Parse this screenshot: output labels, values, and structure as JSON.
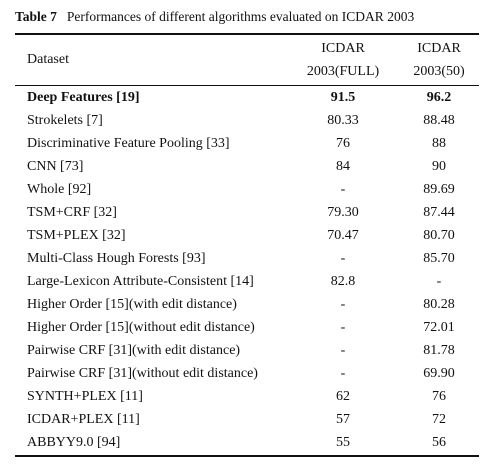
{
  "caption": {
    "label": "Table 7",
    "text": "Performances of different algorithms evaluated on ICDAR 2003"
  },
  "table": {
    "header": {
      "dataset": "Dataset",
      "col1_line1": "ICDAR",
      "col1_line2": "2003(FULL)",
      "col2_line1": "ICDAR",
      "col2_line2": "2003(50)"
    },
    "rows": [
      {
        "name": "Deep Features [19]",
        "full": "91.5",
        "fifty": "96.2",
        "bold": true
      },
      {
        "name": "Strokelets [7]",
        "full": "80.33",
        "fifty": "88.48"
      },
      {
        "name": "Discriminative Feature Pooling [33]",
        "full": "76",
        "fifty": "88"
      },
      {
        "name": "CNN [73]",
        "full": "84",
        "fifty": "90"
      },
      {
        "name": "Whole [92]",
        "full": "-",
        "fifty": "89.69"
      },
      {
        "name": "TSM+CRF [32]",
        "full": "79.30",
        "fifty": "87.44"
      },
      {
        "name": "TSM+PLEX [32]",
        "full": "70.47",
        "fifty": "80.70"
      },
      {
        "name": "Multi-Class Hough Forests [93]",
        "full": "-",
        "fifty": "85.70"
      },
      {
        "name": "Large-Lexicon Attribute-Consistent [14]",
        "full": "82.8",
        "fifty": "-"
      },
      {
        "name": "Higher Order [15](with edit distance)",
        "full": "-",
        "fifty": "80.28"
      },
      {
        "name": "Higher Order [15](without edit distance)",
        "full": "-",
        "fifty": "72.01"
      },
      {
        "name": "Pairwise CRF [31](with edit distance)",
        "full": "-",
        "fifty": "81.78"
      },
      {
        "name": "Pairwise CRF [31](without edit distance)",
        "full": "-",
        "fifty": "69.90"
      },
      {
        "name": "SYNTH+PLEX [11]",
        "full": "62",
        "fifty": "76"
      },
      {
        "name": "ICDAR+PLEX [11]",
        "full": "57",
        "fifty": "72"
      },
      {
        "name": "ABBYY9.0 [94]",
        "full": "55",
        "fifty": "56"
      }
    ]
  }
}
